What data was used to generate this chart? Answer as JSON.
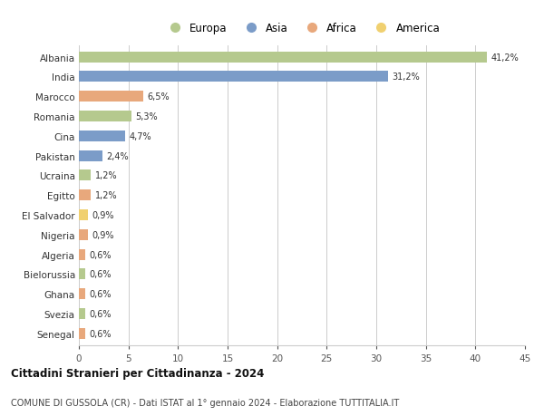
{
  "countries": [
    "Albania",
    "India",
    "Marocco",
    "Romania",
    "Cina",
    "Pakistan",
    "Ucraina",
    "Egitto",
    "El Salvador",
    "Nigeria",
    "Algeria",
    "Bielorussia",
    "Ghana",
    "Svezia",
    "Senegal"
  ],
  "values": [
    41.2,
    31.2,
    6.5,
    5.3,
    4.7,
    2.4,
    1.2,
    1.2,
    0.9,
    0.9,
    0.6,
    0.6,
    0.6,
    0.6,
    0.6
  ],
  "labels": [
    "41,2%",
    "31,2%",
    "6,5%",
    "5,3%",
    "4,7%",
    "2,4%",
    "1,2%",
    "1,2%",
    "0,9%",
    "0,9%",
    "0,6%",
    "0,6%",
    "0,6%",
    "0,6%",
    "0,6%"
  ],
  "continents": [
    "Europa",
    "Asia",
    "Africa",
    "Europa",
    "Asia",
    "Asia",
    "Europa",
    "Africa",
    "America",
    "Africa",
    "Africa",
    "Europa",
    "Africa",
    "Europa",
    "Africa"
  ],
  "colors": {
    "Europa": "#b5c98e",
    "Asia": "#7b9cc8",
    "Africa": "#e8a87c",
    "America": "#f0d070"
  },
  "xlim": [
    0,
    45
  ],
  "xticks": [
    0,
    5,
    10,
    15,
    20,
    25,
    30,
    35,
    40,
    45
  ],
  "title": "Cittadini Stranieri per Cittadinanza - 2024",
  "subtitle": "COMUNE DI GUSSOLA (CR) - Dati ISTAT al 1° gennaio 2024 - Elaborazione TUTTITALIA.IT",
  "background_color": "#ffffff",
  "grid_color": "#cccccc",
  "legend_order": [
    "Europa",
    "Asia",
    "Africa",
    "America"
  ]
}
